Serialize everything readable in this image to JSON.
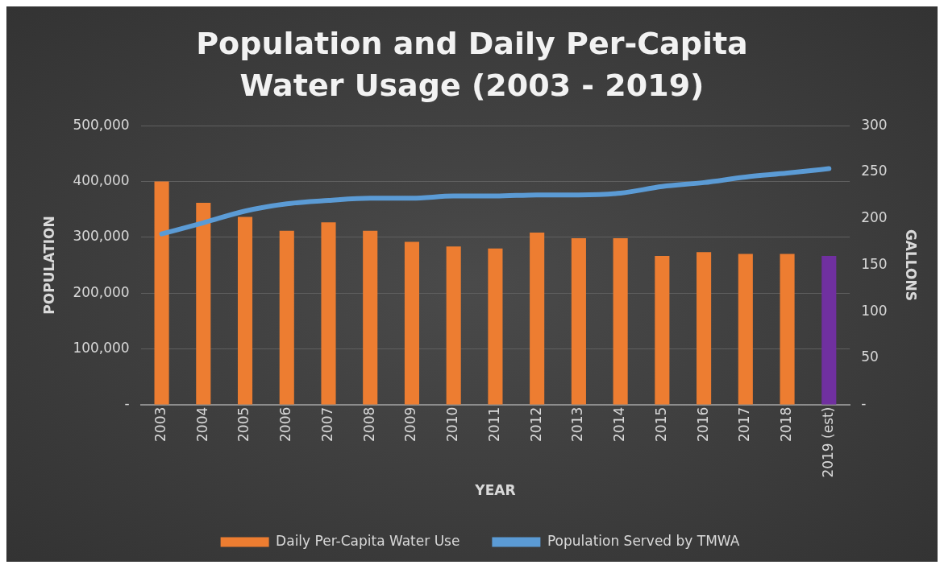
{
  "chart_data": {
    "type": "bar",
    "title": "Population and Daily Per-Capita Water Usage (2003 - 2019)",
    "xlabel": "YEAR",
    "ylabel": "POPULATION",
    "y2label": "GALLONS",
    "categories": [
      "2003",
      "2004",
      "2005",
      "2006",
      "2007",
      "2008",
      "2009",
      "2010",
      "2011",
      "2012",
      "2013",
      "2014",
      "2015",
      "2016",
      "2017",
      "2018",
      "2019 (est)"
    ],
    "series": [
      {
        "name": "Daily Per-Capita Water Use",
        "axis": "y2",
        "color": "#ed7d31",
        "colors": [
          "#ed7d31",
          "#ed7d31",
          "#ed7d31",
          "#ed7d31",
          "#ed7d31",
          "#ed7d31",
          "#ed7d31",
          "#ed7d31",
          "#ed7d31",
          "#ed7d31",
          "#ed7d31",
          "#ed7d31",
          "#ed7d31",
          "#ed7d31",
          "#ed7d31",
          "#ed7d31",
          "#7030a0"
        ],
        "values": [
          240,
          217,
          202,
          187,
          196,
          187,
          175,
          170,
          168,
          185,
          179,
          179,
          160,
          164,
          162,
          162,
          160
        ]
      },
      {
        "name": "Population Served by TMWA",
        "type": "line",
        "axis": "y",
        "color": "#5b9bd5",
        "values": [
          306000,
          326000,
          347000,
          360000,
          366000,
          370000,
          370000,
          374000,
          374000,
          376000,
          376000,
          379000,
          391000,
          398000,
          408000,
          415000,
          423000
        ]
      }
    ],
    "ylim": [
      0,
      500000
    ],
    "yticks": [
      {
        "value": 0,
        "label": "-"
      },
      {
        "value": 100000,
        "label": "100,000"
      },
      {
        "value": 200000,
        "label": "200,000"
      },
      {
        "value": 300000,
        "label": "300,000"
      },
      {
        "value": 400000,
        "label": "400,000"
      },
      {
        "value": 500000,
        "label": "500,000"
      }
    ],
    "y2lim": [
      0,
      300
    ],
    "y2ticks": [
      {
        "value": 0,
        "label": "-"
      },
      50,
      100,
      150,
      200,
      250,
      300
    ],
    "grid": "y",
    "legend": "bottom",
    "marker": "none",
    "line_style": "solid"
  }
}
